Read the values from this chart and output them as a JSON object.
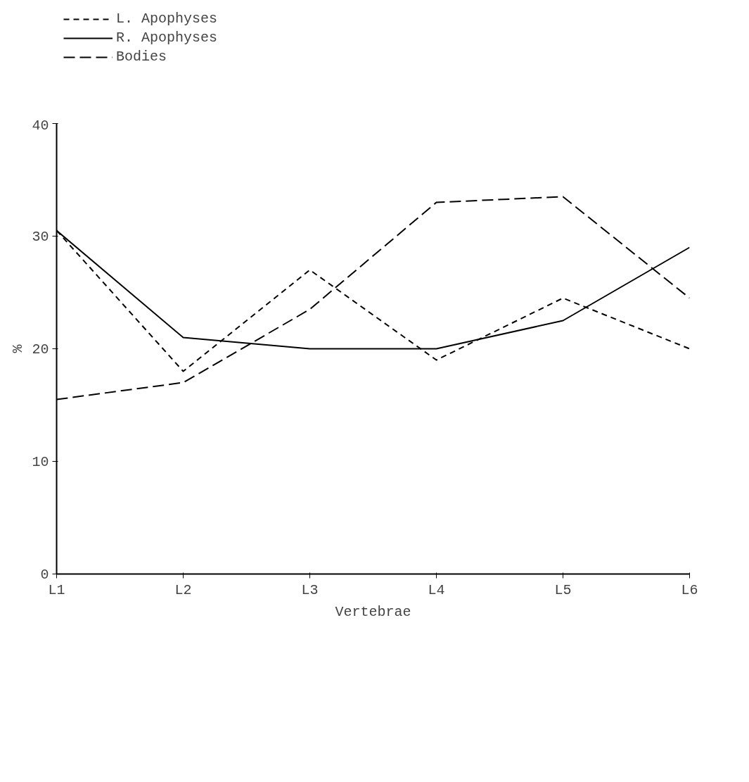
{
  "chart_data": {
    "type": "line",
    "xlabel": "Vertebrae",
    "ylabel": "%",
    "categories": [
      "L1",
      "L2",
      "L3",
      "L4",
      "L5",
      "L6"
    ],
    "series": [
      {
        "name": "L. Apophyses",
        "color": "#000000",
        "line_style": "dashed",
        "values": [
          30.5,
          18,
          27,
          19,
          24.5,
          20
        ]
      },
      {
        "name": "R. Apophyses",
        "color": "#000000",
        "line_style": "solid",
        "values": [
          30.5,
          21,
          20,
          20,
          22.5,
          29
        ]
      },
      {
        "name": "Bodies",
        "color": "#000000",
        "line_style": "longdash",
        "values": [
          15.5,
          17,
          23.5,
          33,
          33.5,
          24.5
        ]
      }
    ],
    "ylim": [
      0,
      40
    ],
    "yticks": [
      0,
      10,
      20,
      30,
      40
    ],
    "grid": false,
    "legend": "top left",
    "marker": "none"
  }
}
